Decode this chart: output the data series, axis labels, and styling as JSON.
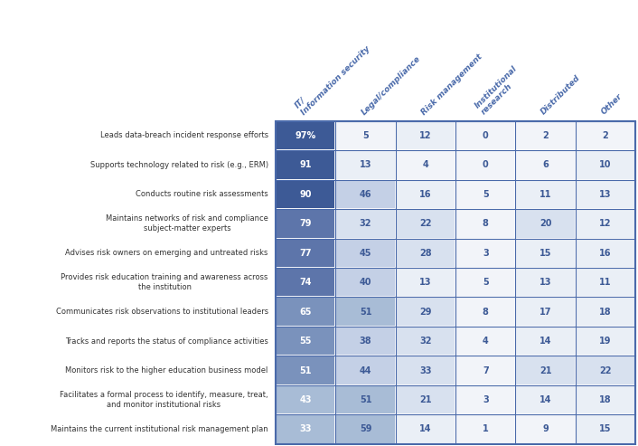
{
  "rows": [
    {
      "label": "Leads data-breach incident response efforts",
      "values": [
        97,
        5,
        12,
        0,
        2,
        2
      ],
      "first_pct": true
    },
    {
      "label": "Supports technology related to risk (e.g., ERM)",
      "values": [
        91,
        13,
        4,
        0,
        6,
        10
      ],
      "first_pct": false
    },
    {
      "label": "Conducts routine risk assessments",
      "values": [
        90,
        46,
        16,
        5,
        11,
        13
      ],
      "first_pct": false
    },
    {
      "label": "Maintains networks of risk and compliance\nsubject-matter experts",
      "values": [
        79,
        32,
        22,
        8,
        20,
        12
      ],
      "first_pct": false
    },
    {
      "label": "Advises risk owners on emerging and untreated risks",
      "values": [
        77,
        45,
        28,
        3,
        15,
        16
      ],
      "first_pct": false
    },
    {
      "label": "Provides risk education training and awareness across\nthe institution",
      "values": [
        74,
        40,
        13,
        5,
        13,
        11
      ],
      "first_pct": false
    },
    {
      "label": "Communicates risk observations to institutional leaders",
      "values": [
        65,
        51,
        29,
        8,
        17,
        18
      ],
      "first_pct": false
    },
    {
      "label": "Tracks and reports the status of compliance activities",
      "values": [
        55,
        38,
        32,
        4,
        14,
        19
      ],
      "first_pct": false
    },
    {
      "label": "Monitors risk to the higher education business model",
      "values": [
        51,
        44,
        33,
        7,
        21,
        22
      ],
      "first_pct": false
    },
    {
      "label": "Facilitates a formal process to identify, measure, treat,\nand monitor institutional risks",
      "values": [
        43,
        51,
        21,
        3,
        14,
        18
      ],
      "first_pct": false
    },
    {
      "label": "Maintains the current institutional risk management plan",
      "values": [
        33,
        59,
        14,
        1,
        9,
        15
      ],
      "first_pct": false
    }
  ],
  "columns": [
    "IT/\nInformation security",
    "Legal/compliance",
    "Risk management",
    "Institutional\nresearch",
    "Distributed",
    "Other"
  ],
  "dark_blue": "#3d5a96",
  "mid_blue1": "#5d75aa",
  "mid_blue2": "#7a92bc",
  "light_blue1": "#a8bcd6",
  "light_blue2": "#c4d0e6",
  "light_blue3": "#d8e1ef",
  "lightest": "#eaeff6",
  "near_white": "#f2f4f9",
  "white_text": "#ffffff",
  "blue_text": "#3d5a96",
  "header_color": "#4a6aaa",
  "grid_color": "#ffffff",
  "border_color": "#4a6aaa",
  "bg_color": "#ffffff",
  "label_color": "#333333"
}
